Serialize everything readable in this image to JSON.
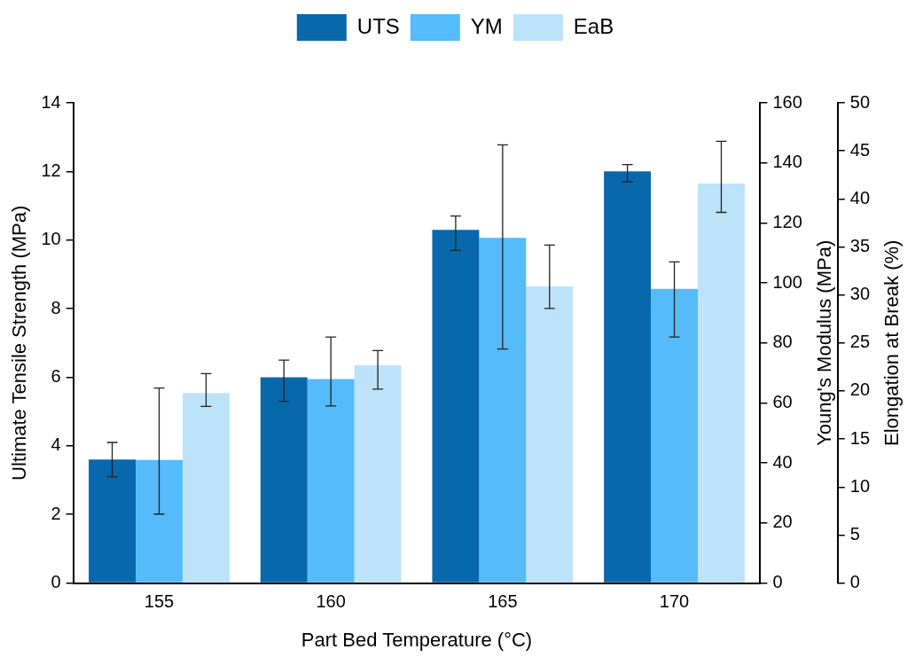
{
  "chart_data": {
    "type": "bar",
    "xlabel": "Part Bed Temperature (°C)",
    "ylabel": "Ultimate Tensile Strength (MPa)",
    "y2label": "Young's Modulus (MPa)",
    "y3label": "Elongation at Break (%)",
    "categories": [
      "155",
      "160",
      "165",
      "170"
    ],
    "series": [
      {
        "name": "UTS",
        "color": "#0868ac",
        "axis": "y",
        "values": [
          3.6,
          6.0,
          10.3,
          12.0
        ],
        "errors": [
          [
            3.1,
            4.1
          ],
          [
            5.3,
            6.5
          ],
          [
            9.7,
            10.7
          ],
          [
            11.7,
            12.2
          ]
        ]
      },
      {
        "name": "YM",
        "color": "#55bbfa",
        "axis": "y2",
        "values": [
          41,
          68,
          115,
          98
        ],
        "errors": [
          [
            23,
            65
          ],
          [
            59,
            82
          ],
          [
            78,
            146
          ],
          [
            82,
            107
          ]
        ]
      },
      {
        "name": "EaB",
        "color": "#bde3fb",
        "axis": "y3",
        "values": [
          19.8,
          22.7,
          30.9,
          41.6
        ],
        "errors": [
          [
            18.4,
            21.8
          ],
          [
            20.2,
            24.2
          ],
          [
            28.6,
            35.2
          ],
          [
            38.6,
            46.0
          ]
        ]
      }
    ],
    "ylim": [
      0,
      14
    ],
    "yticks": [
      0,
      2,
      4,
      6,
      8,
      10,
      12,
      14
    ],
    "y2lim": [
      0,
      160
    ],
    "y2ticks": [
      0,
      20,
      40,
      60,
      80,
      100,
      120,
      140,
      160
    ],
    "y3lim": [
      0,
      50
    ],
    "y3ticks": [
      0,
      5,
      10,
      15,
      20,
      25,
      30,
      35,
      40,
      45,
      50
    ],
    "grid": false,
    "legend": "top"
  }
}
